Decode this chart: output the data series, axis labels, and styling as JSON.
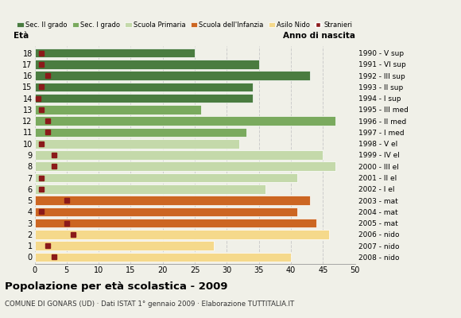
{
  "ages": [
    18,
    17,
    16,
    15,
    14,
    13,
    12,
    11,
    10,
    9,
    8,
    7,
    6,
    5,
    4,
    3,
    2,
    1,
    0
  ],
  "bar_values": [
    25,
    35,
    43,
    34,
    34,
    26,
    47,
    33,
    32,
    45,
    47,
    41,
    36,
    43,
    41,
    44,
    46,
    28,
    40
  ],
  "stranieri_values": [
    1,
    1,
    2,
    1,
    0.5,
    1,
    2,
    2,
    1,
    3,
    3,
    1,
    1,
    5,
    1,
    5,
    6,
    2,
    3
  ],
  "bar_colors": [
    "#4a7c40",
    "#4a7c40",
    "#4a7c40",
    "#4a7c40",
    "#4a7c40",
    "#7aaa5e",
    "#7aaa5e",
    "#7aaa5e",
    "#c4d9aa",
    "#c4d9aa",
    "#c4d9aa",
    "#c4d9aa",
    "#c4d9aa",
    "#cc6622",
    "#cc6622",
    "#cc6622",
    "#f5d98b",
    "#f5d98b",
    "#f5d98b"
  ],
  "anno_labels": [
    "1990 - V sup",
    "1991 - VI sup",
    "1992 - III sup",
    "1993 - II sup",
    "1994 - I sup",
    "1995 - III med",
    "1996 - II med",
    "1997 - I med",
    "1998 - V el",
    "1999 - IV el",
    "2000 - III el",
    "2001 - II el",
    "2002 - I el",
    "2003 - mat",
    "2004 - mat",
    "2005 - mat",
    "2006 - nido",
    "2007 - nido",
    "2008 - nido"
  ],
  "legend_labels": [
    "Sec. II grado",
    "Sec. I grado",
    "Scuola Primaria",
    "Scuola dell'Infanzia",
    "Asilo Nido",
    "Stranieri"
  ],
  "legend_colors": [
    "#4a7c40",
    "#7aaa5e",
    "#c4d9aa",
    "#cc6622",
    "#f5d98b",
    "#8b1a1a"
  ],
  "title": "Popolazione per età scolastica - 2009",
  "subtitle": "COMUNE DI GONARS (UD) · Dati ISTAT 1° gennaio 2009 · Elaborazione TUTTITALIA.IT",
  "xlabel_eta": "Età",
  "xlabel_anno": "Anno di nascita",
  "xlim": [
    0,
    50
  ],
  "xticks": [
    0,
    5,
    10,
    15,
    20,
    25,
    30,
    35,
    40,
    45,
    50
  ],
  "grid_color": "#cccccc",
  "bg_color": "#f0f0e8",
  "bar_height": 0.82,
  "stranieri_color": "#8b1a1a",
  "stranieri_size": 5
}
